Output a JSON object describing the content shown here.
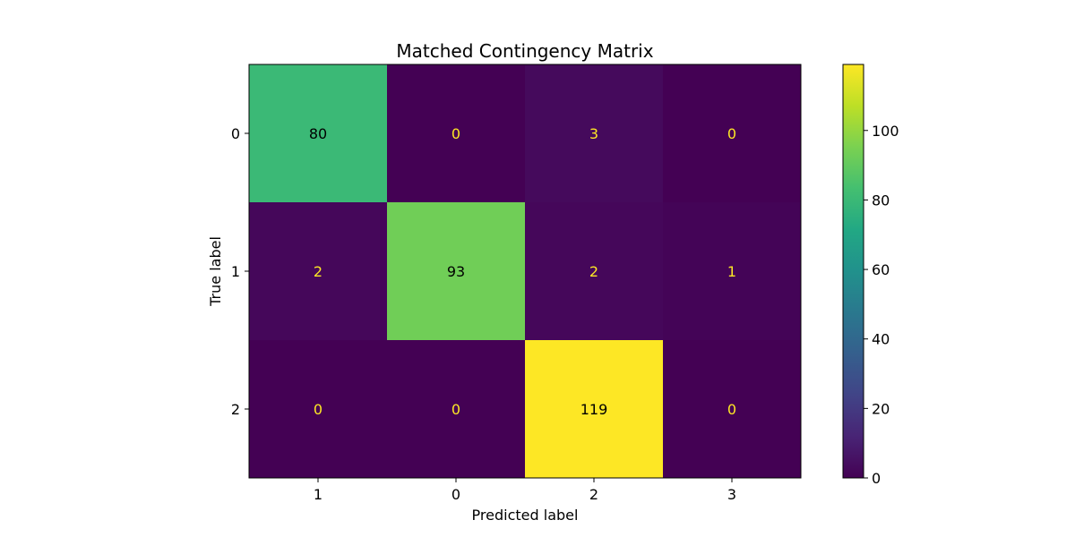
{
  "chart_data": {
    "type": "heatmap",
    "title": "Matched Contingency Matrix",
    "xlabel": "Predicted label",
    "ylabel": "True label",
    "x_categories": [
      "1",
      "0",
      "2",
      "3"
    ],
    "y_categories": [
      "0",
      "1",
      "2"
    ],
    "values": [
      [
        80,
        0,
        3,
        0
      ],
      [
        2,
        93,
        2,
        1
      ],
      [
        0,
        0,
        119,
        0
      ]
    ],
    "colormap": "viridis",
    "colorbar": {
      "range": [
        0,
        119
      ],
      "ticks": [
        0,
        20,
        40,
        60,
        80,
        100
      ]
    },
    "grid": false
  }
}
